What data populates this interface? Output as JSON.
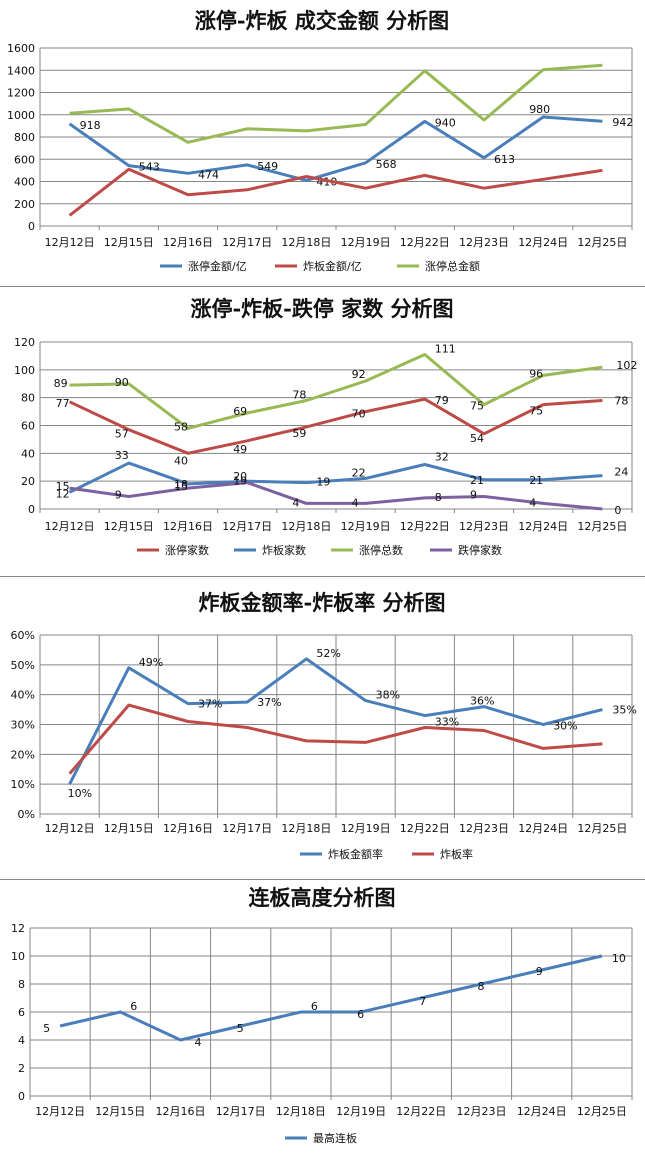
{
  "chart_data": [
    {
      "type": "line",
      "title": "涨停-炸板 成交金额 分析图",
      "categories": [
        "12月12日",
        "12月15日",
        "12月16日",
        "12月17日",
        "12月18日",
        "12月19日",
        "12月22日",
        "12月23日",
        "12月24日",
        "12月25日"
      ],
      "ylim": [
        0,
        1600
      ],
      "ystep": 200,
      "grid": "horizontal",
      "legend_position": "bottom",
      "series": [
        {
          "name": "涨停金额/亿",
          "color": "#4a7ebb",
          "values": [
            918,
            543,
            474,
            549,
            410,
            568,
            940,
            613,
            980,
            942
          ],
          "labels": [
            "918",
            "543",
            "474",
            "549",
            "410",
            "568",
            "940",
            "613",
            "980",
            "942"
          ]
        },
        {
          "name": "炸板金额/亿",
          "color": "#be4b48",
          "values": [
            95,
            510,
            280,
            325,
            445,
            340,
            455,
            340,
            420,
            500
          ]
        },
        {
          "name": "涨停总金额",
          "color": "#98b954",
          "values": [
            1013,
            1053,
            752,
            874,
            855,
            912,
            1395,
            953,
            1405,
            1445
          ]
        }
      ]
    },
    {
      "type": "line",
      "title": "涨停-炸板-跌停 家数 分析图",
      "categories": [
        "12月12日",
        "12月15日",
        "12月16日",
        "12月17日",
        "12月18日",
        "12月19日",
        "12月22日",
        "12月23日",
        "12月24日",
        "12月25日"
      ],
      "ylim": [
        0,
        120
      ],
      "ystep": 20,
      "grid": "horizontal",
      "legend_position": "bottom",
      "series": [
        {
          "name": "涨停家数",
          "color": "#be4b48",
          "values": [
            77,
            57,
            40,
            49,
            59,
            70,
            79,
            54,
            75,
            78
          ],
          "labels": [
            "77",
            "57",
            "40",
            "49",
            "59",
            "70",
            "79",
            "54",
            "75",
            "78"
          ]
        },
        {
          "name": "炸板家数",
          "color": "#4a7ebb",
          "values": [
            12,
            33,
            18,
            20,
            19,
            22,
            32,
            21,
            21,
            24
          ],
          "labels": [
            "12",
            "33",
            "18",
            "20",
            "19",
            "22",
            "32",
            "21",
            "21",
            "24"
          ]
        },
        {
          "name": "涨停总数",
          "color": "#98b954",
          "values": [
            89,
            90,
            58,
            69,
            78,
            92,
            111,
            75,
            96,
            102
          ],
          "labels": [
            "89",
            "90",
            "58",
            "69",
            "78",
            "92",
            "111",
            "75",
            "96",
            "102"
          ]
        },
        {
          "name": "跌停家数",
          "color": "#7d60a0",
          "values": [
            15,
            9,
            15,
            19,
            4,
            4,
            8,
            9,
            4,
            0
          ],
          "labels": [
            "15",
            "9",
            "15",
            "19",
            "4",
            "4",
            "8",
            "9",
            "4",
            "0"
          ]
        }
      ]
    },
    {
      "type": "line",
      "title": "炸板金额率-炸板率 分析图",
      "categories": [
        "12月12日",
        "12月15日",
        "12月16日",
        "12月17日",
        "12月18日",
        "12月19日",
        "12月22日",
        "12月23日",
        "12月24日",
        "12月25日"
      ],
      "ylim": [
        0,
        60
      ],
      "ystep": 10,
      "yunit": "%",
      "grid": "full",
      "legend_position": "bottom",
      "series": [
        {
          "name": "炸板金额率",
          "color": "#4a7ebb",
          "values": [
            10,
            49,
            37,
            37.5,
            52,
            38,
            33,
            36,
            30,
            35
          ],
          "labels": [
            "10%",
            "49%",
            "37%",
            "37%",
            "52%",
            "38%",
            "33%",
            "36%",
            "30%",
            "35%"
          ]
        },
        {
          "name": "炸板率",
          "color": "#be4b48",
          "values": [
            13.5,
            36.5,
            31,
            29,
            24.5,
            24,
            29,
            28,
            22,
            23.5
          ]
        }
      ]
    },
    {
      "type": "line",
      "title": "连板高度分析图",
      "categories": [
        "12月12日",
        "12月15日",
        "12月16日",
        "12月17日",
        "12月18日",
        "12月19日",
        "12月22日",
        "12月23日",
        "12月24日",
        "12月25日"
      ],
      "ylim": [
        0,
        12
      ],
      "ystep": 2,
      "grid": "full",
      "legend_position": "bottom",
      "series": [
        {
          "name": "最高连板",
          "color": "#4a7ebb",
          "values": [
            5,
            6,
            4,
            5,
            6,
            6,
            7,
            8,
            9,
            10
          ],
          "labels": [
            "5",
            "6",
            "4",
            "5",
            "6",
            "6",
            "7",
            "8",
            "9",
            "10"
          ]
        }
      ]
    }
  ]
}
